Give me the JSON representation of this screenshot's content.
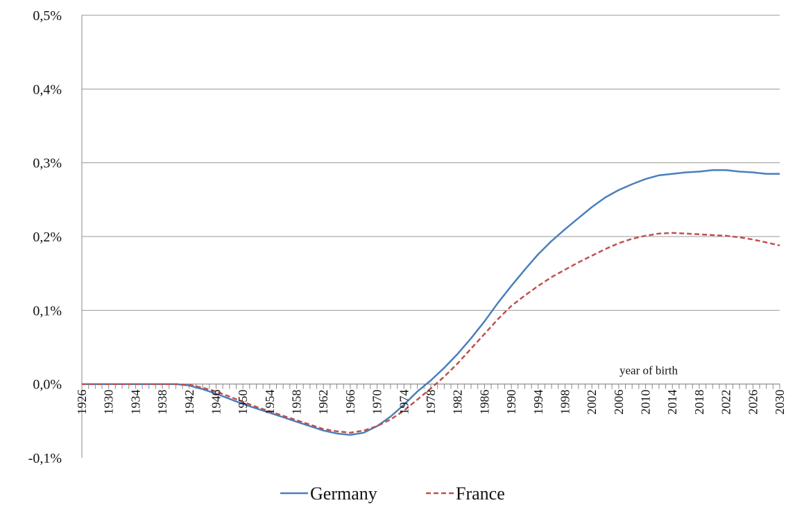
{
  "chart_data": {
    "type": "line",
    "x_axis_label": "year of birth",
    "x": [
      1926,
      1928,
      1930,
      1932,
      1934,
      1936,
      1938,
      1940,
      1942,
      1944,
      1946,
      1948,
      1950,
      1952,
      1954,
      1956,
      1958,
      1960,
      1962,
      1964,
      1966,
      1968,
      1970,
      1972,
      1974,
      1976,
      1978,
      1980,
      1982,
      1984,
      1986,
      1988,
      1990,
      1992,
      1994,
      1996,
      1998,
      2000,
      2002,
      2004,
      2006,
      2008,
      2010,
      2012,
      2014,
      2016,
      2018,
      2020,
      2022,
      2024,
      2026,
      2028,
      2030
    ],
    "x_tick_labels": [
      "1926",
      "1930",
      "1934",
      "1938",
      "1942",
      "1946",
      "1950",
      "1954",
      "1958",
      "1962",
      "1966",
      "1970",
      "1974",
      "1978",
      "1982",
      "1986",
      "1990",
      "1994",
      "1998",
      "2002",
      "2006",
      "2010",
      "2014",
      "2018",
      "2022",
      "2026",
      "2030"
    ],
    "y_tick_labels": [
      "-0,1%",
      "0,0%",
      "0,1%",
      "0,2%",
      "0,3%",
      "0,4%",
      "0,5%"
    ],
    "ylim": [
      -0.1,
      0.5
    ],
    "y_unit": "%",
    "grid": "horizontal",
    "legend_position": "bottom-center",
    "series": [
      {
        "name": "Germany",
        "color": "#4a7ebb",
        "dash": "solid",
        "values": [
          0,
          0,
          0,
          0,
          0,
          0,
          0,
          0,
          -0.002,
          -0.007,
          -0.013,
          -0.02,
          -0.027,
          -0.033,
          -0.039,
          -0.045,
          -0.051,
          -0.057,
          -0.063,
          -0.067,
          -0.069,
          -0.066,
          -0.057,
          -0.044,
          -0.028,
          -0.01,
          0.005,
          0.022,
          0.041,
          0.062,
          0.085,
          0.11,
          0.133,
          0.155,
          0.176,
          0.194,
          0.21,
          0.225,
          0.24,
          0.253,
          0.263,
          0.271,
          0.278,
          0.283,
          0.285,
          0.287,
          0.288,
          0.29,
          0.29,
          0.288,
          0.287,
          0.285,
          0.285
        ]
      },
      {
        "name": "France",
        "color": "#c0504d",
        "dash": "dashed",
        "values": [
          0,
          0,
          0,
          0,
          0,
          0,
          0,
          0,
          -0.001,
          -0.005,
          -0.01,
          -0.017,
          -0.024,
          -0.031,
          -0.037,
          -0.043,
          -0.049,
          -0.055,
          -0.061,
          -0.064,
          -0.066,
          -0.063,
          -0.057,
          -0.048,
          -0.036,
          -0.021,
          -0.006,
          0.01,
          0.028,
          0.048,
          0.068,
          0.088,
          0.106,
          0.12,
          0.133,
          0.145,
          0.155,
          0.165,
          0.174,
          0.183,
          0.191,
          0.197,
          0.201,
          0.204,
          0.205,
          0.204,
          0.203,
          0.202,
          0.201,
          0.199,
          0.196,
          0.192,
          0.188
        ]
      }
    ]
  }
}
